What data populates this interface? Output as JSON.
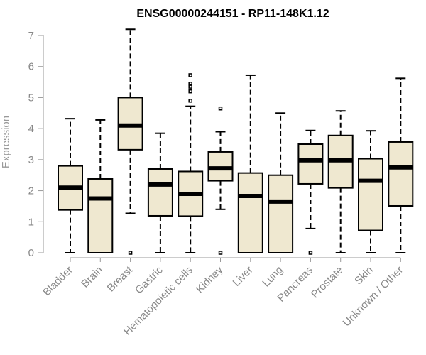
{
  "chart_data": {
    "type": "boxplot",
    "title": "ENSG00000244151 - RP11-148K1.12",
    "xlabel": "",
    "ylabel": "Expression",
    "ylim": [
      0,
      7
    ],
    "yticks": [
      "0",
      "1",
      "2",
      "3",
      "4",
      "5",
      "6",
      "7"
    ],
    "categories": [
      "Bladder",
      "Brain",
      "Breast",
      "Gastric",
      "Hematopoietic cells",
      "Kidney",
      "Liver",
      "Lung",
      "Pancreas",
      "Prostate",
      "Skin",
      "Unknown / Other"
    ],
    "series": [
      {
        "name": "Bladder",
        "whisker_low": 0,
        "q1": 1.38,
        "median": 2.1,
        "q3": 2.8,
        "whisker_high": 4.32,
        "outliers": []
      },
      {
        "name": "Brain",
        "whisker_low": 0,
        "q1": 0,
        "median": 1.75,
        "q3": 2.38,
        "whisker_high": 4.28,
        "outliers": []
      },
      {
        "name": "Breast",
        "whisker_low": 1.27,
        "q1": 3.32,
        "median": 4.1,
        "q3": 5.0,
        "whisker_high": 7.2,
        "outliers": [
          0
        ]
      },
      {
        "name": "Gastric",
        "whisker_low": 0,
        "q1": 1.19,
        "median": 2.2,
        "q3": 2.7,
        "whisker_high": 3.85,
        "outliers": []
      },
      {
        "name": "Hematopoietic cells",
        "whisker_low": 0,
        "q1": 1.18,
        "median": 1.9,
        "q3": 2.62,
        "whisker_high": 4.72,
        "outliers": [
          4.9,
          5.2,
          5.35,
          5.45,
          5.72
        ]
      },
      {
        "name": "Kidney",
        "whisker_low": 1.4,
        "q1": 2.32,
        "median": 2.72,
        "q3": 3.25,
        "whisker_high": 3.9,
        "outliers": [
          0,
          4.65
        ]
      },
      {
        "name": "Liver",
        "whisker_low": 0,
        "q1": 0,
        "median": 1.83,
        "q3": 2.57,
        "whisker_high": 5.72,
        "outliers": []
      },
      {
        "name": "Lung",
        "whisker_low": 0,
        "q1": 0,
        "median": 1.65,
        "q3": 2.5,
        "whisker_high": 4.5,
        "outliers": []
      },
      {
        "name": "Pancreas",
        "whisker_low": 0.78,
        "q1": 2.22,
        "median": 2.98,
        "q3": 3.5,
        "whisker_high": 3.94,
        "outliers": [
          0
        ]
      },
      {
        "name": "Prostate",
        "whisker_low": 0,
        "q1": 2.09,
        "median": 2.98,
        "q3": 3.78,
        "whisker_high": 4.57,
        "outliers": []
      },
      {
        "name": "Skin",
        "whisker_low": 0,
        "q1": 0.72,
        "median": 2.32,
        "q3": 3.03,
        "whisker_high": 3.93,
        "outliers": []
      },
      {
        "name": "Unknown / Other",
        "whisker_low": 0,
        "q1": 1.51,
        "median": 2.75,
        "q3": 3.57,
        "whisker_high": 5.62,
        "outliers": []
      }
    ],
    "box_fill": "#efe8d0",
    "box_stroke": "#000000",
    "grid": false,
    "legend": "none"
  }
}
